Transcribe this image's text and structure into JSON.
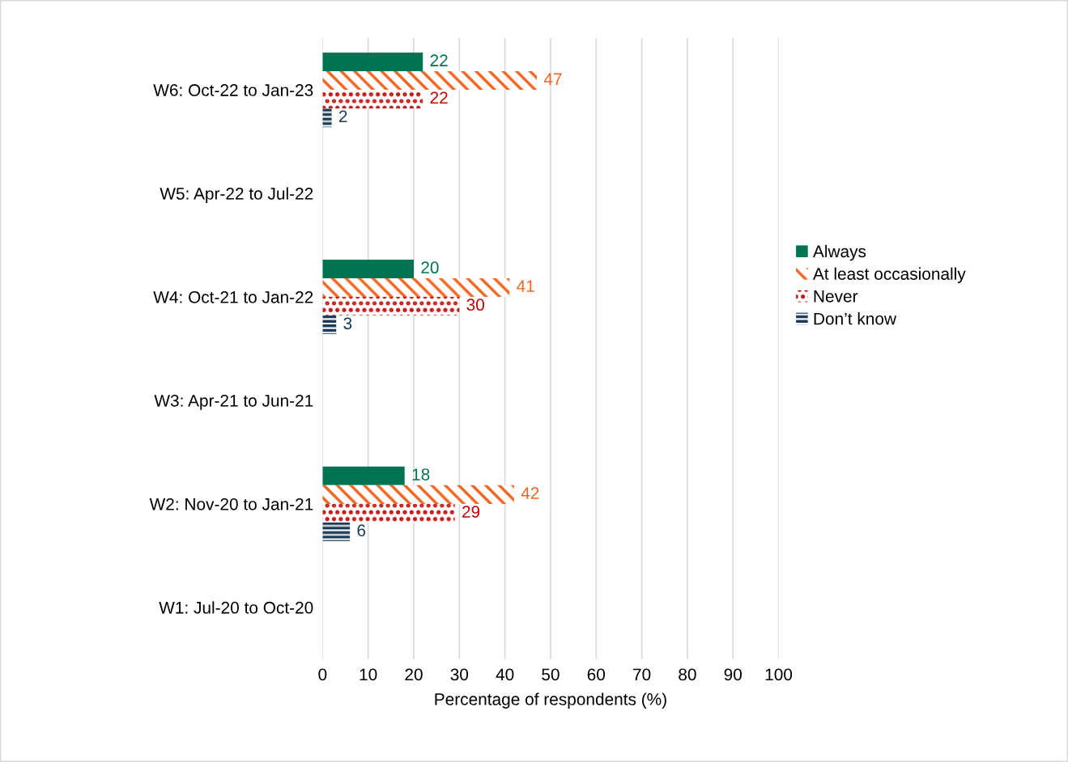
{
  "chart_data": {
    "type": "bar",
    "orientation": "horizontal",
    "xlabel": "Percentage of respondents (%)",
    "categories": [
      "W6: Oct-22 to Jan-23",
      "W5: Apr-22 to Jul-22",
      "W4: Oct-21 to Jan-22",
      "W3: Apr-21 to Jun-21",
      "W2: Nov-20 to Jan-21",
      "W1: Jul-20 to Oct-20"
    ],
    "series": [
      {
        "name": "Always",
        "color": "#007352",
        "values": [
          22,
          null,
          20,
          null,
          18,
          null
        ]
      },
      {
        "name": "At least occasionally",
        "color": "#f26522",
        "values": [
          47,
          null,
          41,
          null,
          42,
          null
        ]
      },
      {
        "name": "Never",
        "color": "#c00000",
        "values": [
          22,
          null,
          30,
          null,
          29,
          null
        ]
      },
      {
        "name": "Don’t know",
        "color": "#1b3a57",
        "values": [
          2,
          null,
          3,
          null,
          6,
          null
        ]
      }
    ],
    "xlim": [
      0,
      100
    ],
    "xticks": [
      0,
      10,
      20,
      30,
      40,
      50,
      60,
      70,
      80,
      90,
      100
    ],
    "grid": "x",
    "legend": "right",
    "data_labels": true
  }
}
